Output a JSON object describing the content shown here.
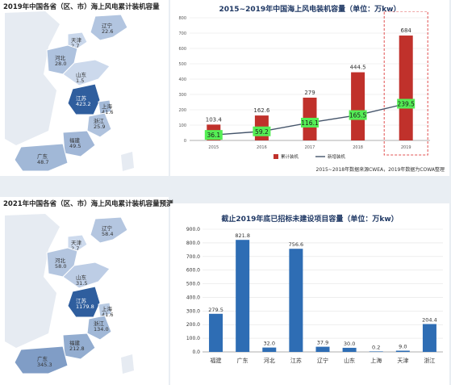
{
  "top": {
    "map": {
      "title": "2019年中国各省（区、市）海上风电累计装机容量",
      "provinces": [
        {
          "name": "辽宁",
          "value": "22.6"
        },
        {
          "name": "天津",
          "value": "2.7"
        },
        {
          "name": "河北",
          "value": "28.0"
        },
        {
          "name": "山东",
          "value": "1.5"
        },
        {
          "name": "江苏",
          "value": "423.2"
        },
        {
          "name": "上海",
          "value": "41.6"
        },
        {
          "name": "浙江",
          "value": "25.9"
        },
        {
          "name": "福建",
          "value": "49.5"
        },
        {
          "name": "广东",
          "value": "48.7"
        }
      ]
    },
    "chart": {
      "title": "2015~2019年中国海上风电装机容量（单位：万kw）",
      "source": "2015~2018年数据来源CWEA，2019年数据为COWA整理"
    }
  },
  "bottom": {
    "map": {
      "title": "2021年中国各省（区、市）海上风电累计装机容量预测",
      "provinces": [
        {
          "name": "辽宁",
          "value": "58.4"
        },
        {
          "name": "天津",
          "value": "2.7"
        },
        {
          "name": "河北",
          "value": "58.0"
        },
        {
          "name": "山东",
          "value": "31.5"
        },
        {
          "name": "江苏",
          "value": "1179.8"
        },
        {
          "name": "上海",
          "value": "41.6"
        },
        {
          "name": "浙江",
          "value": "134.0"
        },
        {
          "name": "福建",
          "value": "212.8"
        },
        {
          "name": "广东",
          "value": "345.3"
        }
      ]
    },
    "chart": {
      "title": "截止2019年底已招标未建设项目容量（单位：万kw）"
    }
  },
  "chart_data": [
    {
      "type": "bar",
      "title": "2015~2019年中国海上风电装机容量（单位：万kw）",
      "categories": [
        "2015",
        "2016",
        "2017",
        "2018",
        "2019"
      ],
      "series": [
        {
          "name": "累计装机",
          "type": "bar",
          "values": [
            103.4,
            162.6,
            279,
            444.5,
            684
          ],
          "labels": [
            "103.4",
            "162.6",
            "279",
            "444.5",
            "684"
          ],
          "color": "#c0312b"
        },
        {
          "name": "新增装机",
          "type": "line",
          "values": [
            36.1,
            59.2,
            116.1,
            165.5,
            239.5
          ],
          "labels": [
            "36.1",
            "59.2",
            "116.1",
            "165.5",
            "239.5"
          ],
          "color": "#44546a",
          "label_bg": "#55ee55"
        }
      ],
      "yticks": [
        "0",
        "100",
        "200",
        "300",
        "400",
        "500",
        "600",
        "700",
        "800"
      ],
      "ylim": [
        0,
        800
      ],
      "highlight": "2019",
      "legend_position": "bottom"
    },
    {
      "type": "bar",
      "title": "截止2019年底已招标未建设项目容量（单位：万kw）",
      "categories": [
        "福建",
        "广东",
        "河北",
        "江苏",
        "辽宁",
        "山东",
        "上海",
        "天津",
        "浙江"
      ],
      "values": [
        279.5,
        821.8,
        32.0,
        756.6,
        37.9,
        30.0,
        0.2,
        9.0,
        204.4
      ],
      "labels": [
        "279.5",
        "821.8",
        "32.0",
        "756.6",
        "37.9",
        "30.0",
        "0.2",
        "9.0",
        "204.4"
      ],
      "yticks": [
        "0.0",
        "100.0",
        "200.0",
        "300.0",
        "400.0",
        "500.0",
        "600.0",
        "700.0",
        "800.0",
        "900.0"
      ],
      "ylim": [
        0,
        900
      ],
      "color": "#2e6db4"
    }
  ],
  "colors": {
    "bar_red": "#c0312b",
    "line": "#44546a",
    "label_green": "#55ee55",
    "bar_blue": "#2e6db4",
    "map_light": "#d3dff0",
    "map_dark": "#2f5e9e"
  }
}
